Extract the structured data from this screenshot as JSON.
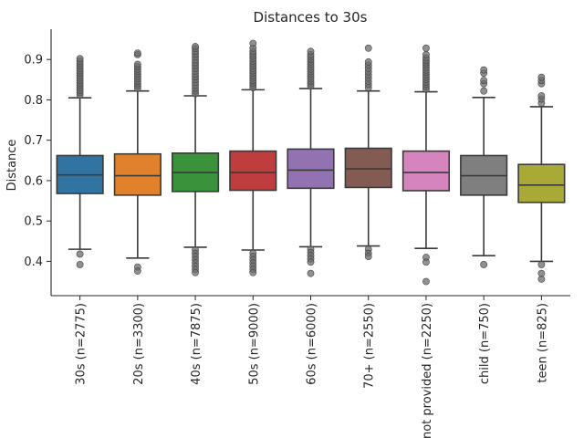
{
  "chart_data": {
    "type": "box",
    "title": "Distances to 30s",
    "xlabel": "",
    "ylabel": "Distance",
    "ylim": [
      0.315,
      0.975
    ],
    "yticks": [
      "0.4",
      "0.5",
      "0.6",
      "0.7",
      "0.8",
      "0.9"
    ],
    "grid": false,
    "categories": [
      {
        "label": "30s (n=2775)",
        "color": "#3274a1",
        "whislo": 0.43,
        "q1": 0.568,
        "median": 0.614,
        "q3": 0.662,
        "whishi": 0.805,
        "fliers_high": [
          0.812,
          0.818,
          0.824,
          0.83,
          0.836,
          0.842,
          0.848,
          0.854,
          0.86,
          0.866,
          0.872,
          0.878,
          0.884,
          0.89,
          0.896,
          0.902
        ],
        "fliers_low": [
          0.418,
          0.392
        ]
      },
      {
        "label": "20s (n=3300)",
        "color": "#e1812c",
        "whislo": 0.408,
        "q1": 0.564,
        "median": 0.612,
        "q3": 0.666,
        "whishi": 0.822,
        "fliers_high": [
          0.828,
          0.834,
          0.84,
          0.846,
          0.852,
          0.858,
          0.864,
          0.87,
          0.876,
          0.882,
          0.888,
          0.912,
          0.916
        ],
        "fliers_low": [
          0.386,
          0.376
        ]
      },
      {
        "label": "40s (n=7875)",
        "color": "#3a923a",
        "whislo": 0.435,
        "q1": 0.573,
        "median": 0.62,
        "q3": 0.668,
        "whishi": 0.81,
        "fliers_high": [
          0.815,
          0.822,
          0.829,
          0.836,
          0.843,
          0.85,
          0.857,
          0.864,
          0.871,
          0.878,
          0.885,
          0.892,
          0.899,
          0.906,
          0.913,
          0.92,
          0.927,
          0.932
        ],
        "fliers_low": [
          0.428,
          0.42,
          0.412,
          0.404,
          0.396,
          0.388,
          0.38,
          0.372
        ]
      },
      {
        "label": "50s (n=9000)",
        "color": "#c03d3e",
        "whislo": 0.428,
        "q1": 0.576,
        "median": 0.62,
        "q3": 0.673,
        "whishi": 0.825,
        "fliers_high": [
          0.83,
          0.836,
          0.842,
          0.848,
          0.854,
          0.86,
          0.866,
          0.872,
          0.878,
          0.884,
          0.89,
          0.896,
          0.902,
          0.908,
          0.914,
          0.92,
          0.928,
          0.94
        ],
        "fliers_low": [
          0.42,
          0.412,
          0.404,
          0.396,
          0.388,
          0.38,
          0.372
        ]
      },
      {
        "label": "60s (n=6000)",
        "color": "#9372b2",
        "whislo": 0.436,
        "q1": 0.581,
        "median": 0.626,
        "q3": 0.678,
        "whishi": 0.828,
        "fliers_high": [
          0.834,
          0.84,
          0.846,
          0.852,
          0.858,
          0.864,
          0.87,
          0.876,
          0.882,
          0.888,
          0.894,
          0.9,
          0.906,
          0.912,
          0.92
        ],
        "fliers_low": [
          0.43,
          0.422,
          0.414,
          0.406,
          0.398,
          0.37
        ]
      },
      {
        "label": "70+ (n=2550)",
        "color": "#845b53",
        "whislo": 0.438,
        "q1": 0.583,
        "median": 0.629,
        "q3": 0.68,
        "whishi": 0.822,
        "fliers_high": [
          0.83,
          0.838,
          0.846,
          0.854,
          0.862,
          0.87,
          0.878,
          0.886,
          0.894,
          0.928
        ],
        "fliers_low": [
          0.43,
          0.42,
          0.412
        ]
      },
      {
        "label": "not provided (n=2250)",
        "color": "#d684bd",
        "whislo": 0.432,
        "q1": 0.575,
        "median": 0.62,
        "q3": 0.673,
        "whishi": 0.82,
        "fliers_high": [
          0.826,
          0.832,
          0.838,
          0.844,
          0.85,
          0.856,
          0.862,
          0.868,
          0.874,
          0.88,
          0.886,
          0.892,
          0.898,
          0.904,
          0.912,
          0.928
        ],
        "fliers_low": [
          0.41,
          0.398,
          0.35
        ]
      },
      {
        "label": "child (n=750)",
        "color": "#7f7f7f",
        "whislo": 0.414,
        "q1": 0.564,
        "median": 0.612,
        "q3": 0.662,
        "whishi": 0.806,
        "fliers_high": [
          0.822,
          0.84,
          0.848,
          0.866,
          0.874
        ],
        "fliers_low": [
          0.392
        ]
      },
      {
        "label": "teen (n=825)",
        "color": "#a9aa35",
        "whislo": 0.4,
        "q1": 0.546,
        "median": 0.589,
        "q3": 0.64,
        "whishi": 0.783,
        "fliers_high": [
          0.792,
          0.802,
          0.81,
          0.84,
          0.848,
          0.856
        ],
        "fliers_low": [
          0.392,
          0.37,
          0.356
        ]
      }
    ]
  }
}
